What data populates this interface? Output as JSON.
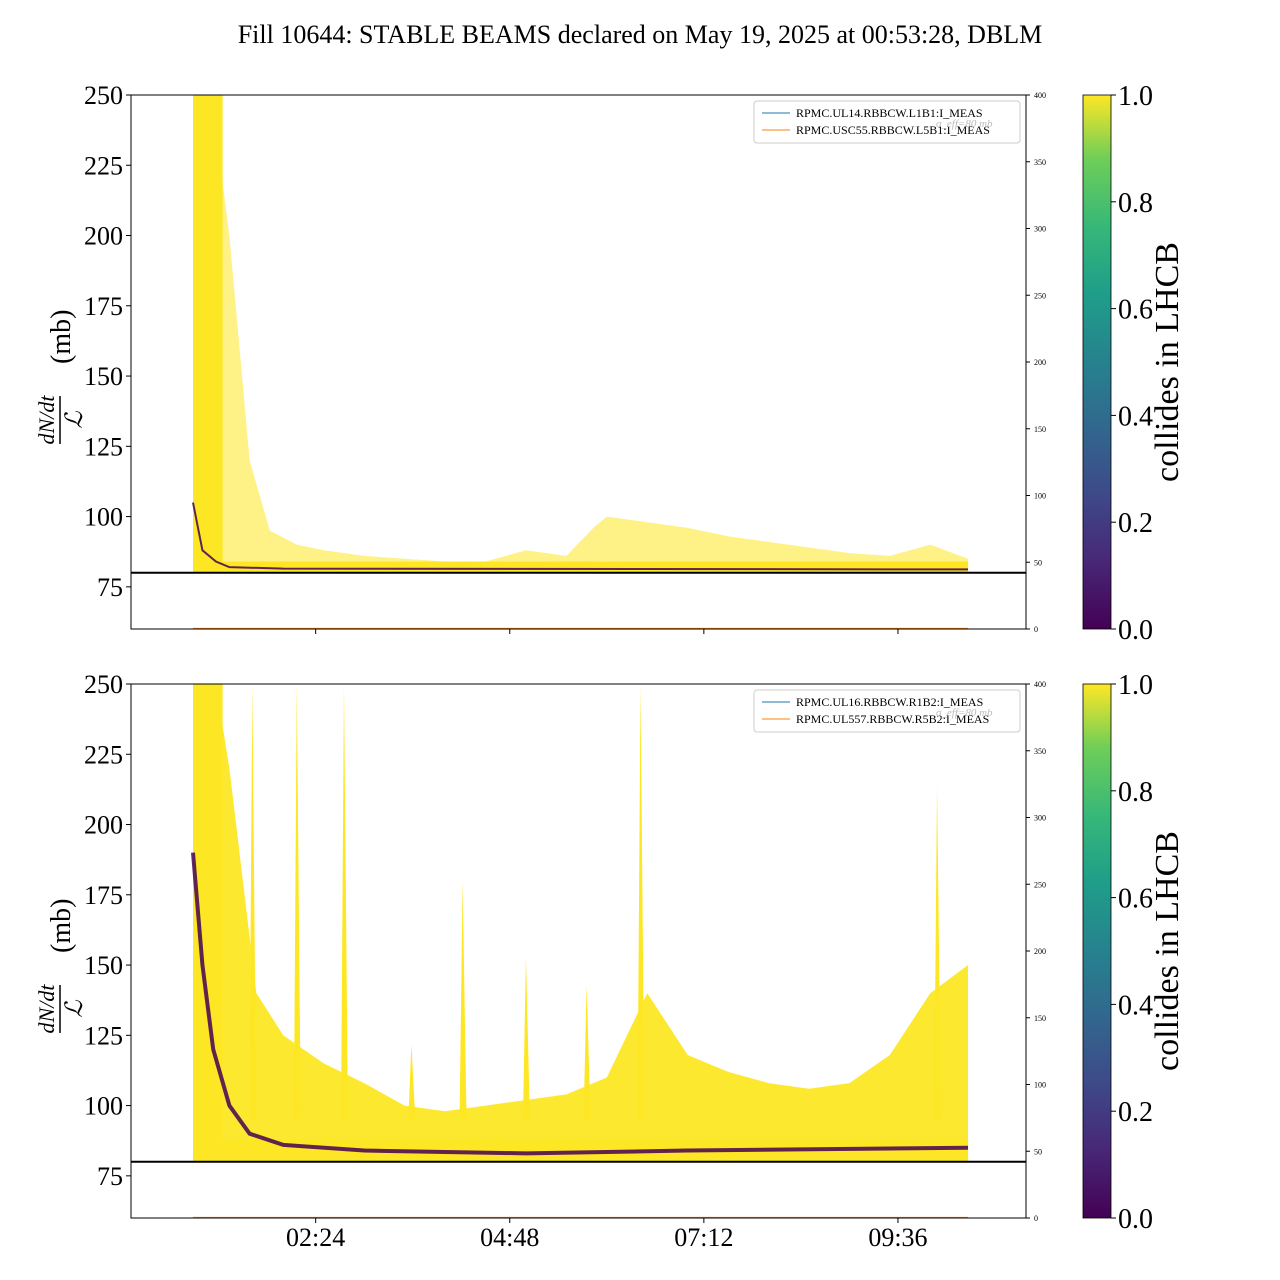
{
  "title": "Fill 10644: STABLE BEAMS declared on May 19, 2025 at 00:53:28, DBLM",
  "chart_data": [
    {
      "type": "line",
      "ylabel": "dN/dt / ℒ (mb)",
      "ylabel_main": "dN/dt",
      "ylabel_den": "ℒ",
      "ylabel_unit": "(mb)",
      "ylim": [
        60,
        250
      ],
      "yticks": [
        75,
        100,
        125,
        150,
        175,
        200,
        225,
        250
      ],
      "y2lim": [
        0,
        400
      ],
      "y2ticks": [
        0,
        50,
        100,
        150,
        200,
        250,
        300,
        350,
        400
      ],
      "x_range": [
        "00:53",
        "10:28"
      ],
      "xticks": [
        "02:24",
        "04:48",
        "07:12",
        "09:36"
      ],
      "show_xtick_labels": false,
      "threshold": 80,
      "threshold_label": "σ_eff=80 mb",
      "legend": [
        "RPMC.UL14.RBBCW.L1B1:I_MEAS",
        "RPMC.USC55.RBBCW.L5B1:I_MEAS"
      ],
      "legend_location": "upper right",
      "series": [
        {
          "name": "RPMC.UL14.RBBCW.L1B1:I_MEAS",
          "color": "#1f77b4",
          "values": []
        },
        {
          "name": "RPMC.USC55.RBBCW.L5B1:I_MEAS",
          "color": "#ff7f0e",
          "values": []
        }
      ],
      "bunch_envelope": {
        "x": [
          "00:53",
          "00:58",
          "01:05",
          "01:12",
          "01:20",
          "01:35",
          "01:50",
          "02:10",
          "02:30",
          "03:00",
          "03:30",
          "04:00",
          "04:30",
          "05:00",
          "05:30",
          "05:50",
          "06:00",
          "06:30",
          "07:00",
          "07:30",
          "08:00",
          "08:30",
          "09:00",
          "09:30",
          "10:00",
          "10:28"
        ],
        "y": [
          250,
          250,
          250,
          230,
          200,
          120,
          95,
          90,
          88,
          86,
          85,
          84,
          84,
          88,
          86,
          96,
          100,
          98,
          96,
          93,
          91,
          89,
          87,
          86,
          90,
          85
        ]
      },
      "colorbar": {
        "label": "collides in LHCB",
        "range": [
          0.0,
          1.0
        ],
        "ticks": [
          "0.0",
          "0.2",
          "0.4",
          "0.6",
          "0.8",
          "1.0"
        ]
      }
    },
    {
      "type": "line",
      "ylabel": "dN/dt / ℒ (mb)",
      "ylabel_main": "dN/dt",
      "ylabel_den": "ℒ",
      "ylabel_unit": "(mb)",
      "ylim": [
        60,
        250
      ],
      "yticks": [
        75,
        100,
        125,
        150,
        175,
        200,
        225,
        250
      ],
      "y2lim": [
        0,
        400
      ],
      "y2ticks": [
        0,
        50,
        100,
        150,
        200,
        250,
        300,
        350,
        400
      ],
      "x_range": [
        "00:53",
        "10:28"
      ],
      "xticks": [
        "02:24",
        "04:48",
        "07:12",
        "09:36"
      ],
      "show_xtick_labels": true,
      "threshold": 80,
      "threshold_label": "σ_eff=80 mb",
      "legend": [
        "RPMC.UL16.RBBCW.R1B2:I_MEAS",
        "RPMC.UL557.RBBCW.R5B2:I_MEAS"
      ],
      "legend_location": "upper right",
      "series": [
        {
          "name": "RPMC.UL16.RBBCW.R1B2:I_MEAS",
          "color": "#1f77b4",
          "values": []
        },
        {
          "name": "RPMC.UL557.RBBCW.R5B2:I_MEAS",
          "color": "#ff7f0e",
          "values": []
        }
      ],
      "bunch_envelope": {
        "x": [
          "00:53",
          "01:00",
          "01:10",
          "01:20",
          "01:40",
          "02:00",
          "02:30",
          "03:00",
          "03:30",
          "04:00",
          "04:30",
          "05:00",
          "05:30",
          "06:00",
          "06:30",
          "07:00",
          "07:30",
          "08:00",
          "08:30",
          "09:00",
          "09:30",
          "10:00",
          "10:28"
        ],
        "y": [
          250,
          250,
          250,
          220,
          140,
          125,
          115,
          108,
          100,
          98,
          100,
          102,
          104,
          110,
          140,
          118,
          112,
          108,
          106,
          108,
          118,
          140,
          150
        ]
      },
      "spikes": [
        {
          "x": "01:37",
          "y": 250
        },
        {
          "x": "02:10",
          "y": 250
        },
        {
          "x": "02:45",
          "y": 250
        },
        {
          "x": "03:35",
          "y": 122
        },
        {
          "x": "04:13",
          "y": 180
        },
        {
          "x": "05:00",
          "y": 153
        },
        {
          "x": "05:45",
          "y": 143
        },
        {
          "x": "06:25",
          "y": 250
        },
        {
          "x": "10:05",
          "y": 214
        }
      ],
      "colorbar": {
        "label": "collides in LHCB",
        "range": [
          0.0,
          1.0
        ],
        "ticks": [
          "0.0",
          "0.2",
          "0.4",
          "0.6",
          "0.8",
          "1.0"
        ]
      }
    }
  ]
}
